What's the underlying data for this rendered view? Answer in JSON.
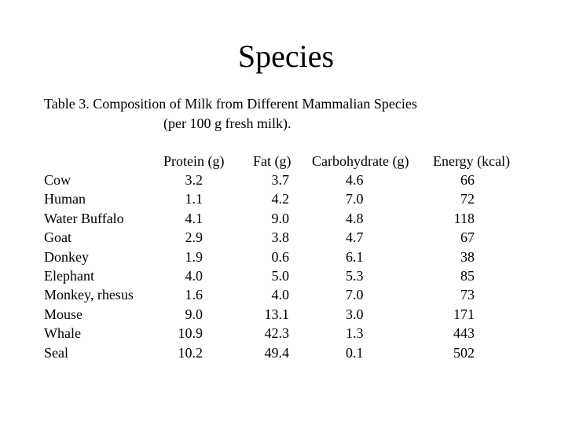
{
  "slide": {
    "title": "Species",
    "caption": "Table 3. Composition of Milk from Different Mammalian Species",
    "subcaption": "(per 100 g fresh milk)."
  },
  "table": {
    "columns": [
      "Protein (g)",
      "Fat (g)",
      "Carbohydrate (g)",
      "Energy (kcal)"
    ],
    "rows": [
      {
        "species": "Cow",
        "protein": "3.2",
        "fat": "3.7",
        "carbohydrate": "4.6",
        "energy": "66"
      },
      {
        "species": "Human",
        "protein": "1.1",
        "fat": "4.2",
        "carbohydrate": "7.0",
        "energy": "72"
      },
      {
        "species": "Water Buffalo",
        "protein": "4.1",
        "fat": "9.0",
        "carbohydrate": "4.8",
        "energy": "118"
      },
      {
        "species": "Goat",
        "protein": "2.9",
        "fat": "3.8",
        "carbohydrate": "4.7",
        "energy": "67"
      },
      {
        "species": "Donkey",
        "protein": "1.9",
        "fat": "0.6",
        "carbohydrate": "6.1",
        "energy": "38"
      },
      {
        "species": "Elephant",
        "protein": "4.0",
        "fat": "5.0",
        "carbohydrate": "5.3",
        "energy": "85"
      },
      {
        "species": "Monkey, rhesus",
        "protein": "1.6",
        "fat": "4.0",
        "carbohydrate": "7.0",
        "energy": "73"
      },
      {
        "species": "Mouse",
        "protein": "9.0",
        "fat": "13.1",
        "carbohydrate": "3.0",
        "energy": "171"
      },
      {
        "species": "Whale",
        "protein": "10.9",
        "fat": "42.3",
        "carbohydrate": "1.3",
        "energy": "443"
      },
      {
        "species": "Seal",
        "protein": "10.2",
        "fat": "49.4",
        "carbohydrate": "0.1",
        "energy": "502"
      }
    ]
  }
}
